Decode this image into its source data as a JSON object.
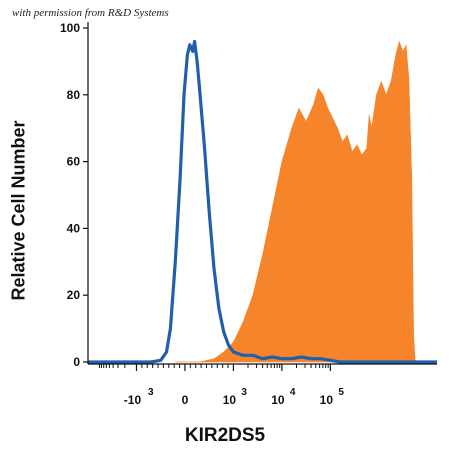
{
  "watermark": "with permission from R&D Systems",
  "chart_data": {
    "type": "area",
    "title": "",
    "xlabel": "KIR2DS5",
    "ylabel": "Relative Cell Number",
    "ylim": [
      0,
      100
    ],
    "yticks": [
      0,
      20,
      40,
      60,
      80,
      100
    ],
    "x_scale": "biexponential",
    "xlim": [
      -2.0,
      5.2
    ],
    "xticks": [
      {
        "position": -1,
        "base": "-10",
        "exp": "3"
      },
      {
        "position": 0,
        "base": "0",
        "exp": ""
      },
      {
        "position": 1,
        "base": "10",
        "exp": "3"
      },
      {
        "position": 2,
        "base": "10",
        "exp": "4"
      },
      {
        "position": 3,
        "base": "10",
        "exp": "5"
      }
    ],
    "grid": false,
    "legend": "none",
    "series": [
      {
        "style": "filled",
        "color": "#f5842a",
        "points": [
          [
            -0.2,
            0
          ],
          [
            0.3,
            0
          ],
          [
            0.6,
            1
          ],
          [
            0.8,
            3
          ],
          [
            1.0,
            6
          ],
          [
            1.2,
            12
          ],
          [
            1.4,
            20
          ],
          [
            1.6,
            32
          ],
          [
            1.8,
            46
          ],
          [
            2.0,
            60
          ],
          [
            2.2,
            70
          ],
          [
            2.35,
            76
          ],
          [
            2.5,
            72
          ],
          [
            2.65,
            77
          ],
          [
            2.75,
            82
          ],
          [
            2.85,
            80
          ],
          [
            2.95,
            76
          ],
          [
            3.05,
            73
          ],
          [
            3.15,
            70
          ],
          [
            3.25,
            66
          ],
          [
            3.35,
            68
          ],
          [
            3.45,
            63
          ],
          [
            3.55,
            65
          ],
          [
            3.65,
            62
          ],
          [
            3.75,
            64
          ],
          [
            3.8,
            74
          ],
          [
            3.85,
            70
          ],
          [
            3.95,
            80
          ],
          [
            4.05,
            84
          ],
          [
            4.15,
            80
          ],
          [
            4.25,
            84
          ],
          [
            4.35,
            92
          ],
          [
            4.42,
            96
          ],
          [
            4.5,
            93
          ],
          [
            4.56,
            95
          ],
          [
            4.62,
            85
          ],
          [
            4.68,
            55
          ],
          [
            4.72,
            8
          ],
          [
            4.75,
            0
          ]
        ]
      },
      {
        "style": "line",
        "color": "#1f5fae",
        "points": [
          [
            -2.0,
            0
          ],
          [
            -0.7,
            0
          ],
          [
            -0.5,
            0.5
          ],
          [
            -0.38,
            3
          ],
          [
            -0.3,
            10
          ],
          [
            -0.2,
            30
          ],
          [
            -0.1,
            55
          ],
          [
            -0.02,
            80
          ],
          [
            0.05,
            92
          ],
          [
            0.1,
            95
          ],
          [
            0.16,
            93
          ],
          [
            0.2,
            96
          ],
          [
            0.25,
            90
          ],
          [
            0.3,
            82
          ],
          [
            0.4,
            65
          ],
          [
            0.5,
            45
          ],
          [
            0.6,
            28
          ],
          [
            0.7,
            16
          ],
          [
            0.8,
            9
          ],
          [
            0.9,
            5
          ],
          [
            1.0,
            3
          ],
          [
            1.2,
            2
          ],
          [
            1.4,
            2
          ],
          [
            1.6,
            1
          ],
          [
            1.8,
            1.5
          ],
          [
            2.0,
            1
          ],
          [
            2.2,
            1
          ],
          [
            2.4,
            1.5
          ],
          [
            2.6,
            1
          ],
          [
            2.8,
            1
          ],
          [
            3.0,
            0.5
          ],
          [
            3.2,
            0
          ],
          [
            5.2,
            0
          ]
        ]
      }
    ]
  }
}
